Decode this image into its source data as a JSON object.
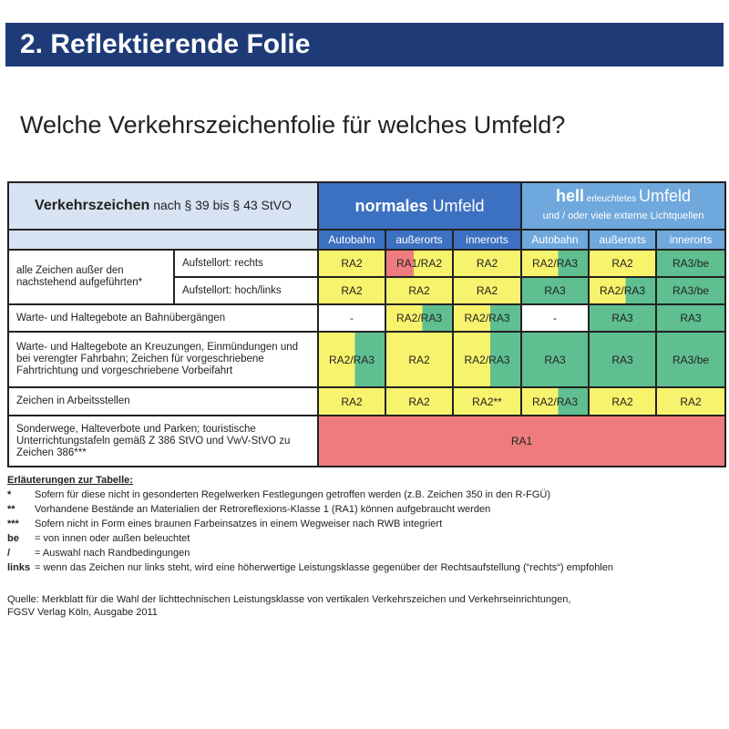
{
  "title": "2. Reflektierende Folie",
  "subtitle": "Welche Verkehrszeichenfolie für welches Umfeld?",
  "colors": {
    "title_bar": "#1e3b78",
    "normal_header": "#3c70c0",
    "hell_header": "#6fa8dc",
    "RA1": "#ee7c7e",
    "RA2": "#f8f36c",
    "RA3": "#5fbf91"
  },
  "table": {
    "header_left_bold": "Verkehrszeichen",
    "header_left_rest": " nach § 39 bis § 43 StVO",
    "normal_bold": "normales",
    "normal_rest": " Umfeld",
    "hell_bold": "hell",
    "hell_small": " erleuchtetes ",
    "hell_rest": "Umfeld",
    "hell_sub": "und / oder viele externe Lichtquellen",
    "subheaders": [
      "Autobahn",
      "außerorts",
      "innerorts",
      "Autobahn",
      "außerorts",
      "innerorts"
    ],
    "rows": [
      {
        "label": "alle Zeichen außer den nachstehend aufgeführten*",
        "sub": "Aufstellort: rechts",
        "cells": [
          {
            "t": "RA2",
            "c": "y"
          },
          {
            "t": "RA1/RA2",
            "c": "r-y"
          },
          {
            "t": "RA2",
            "c": "y"
          },
          {
            "t": "RA2/RA3",
            "c": "y-g"
          },
          {
            "t": "RA2",
            "c": "y"
          },
          {
            "t": "RA3/be",
            "c": "g"
          }
        ]
      },
      {
        "label": "",
        "sub": "Aufstellort: hoch/links",
        "cells": [
          {
            "t": "RA2",
            "c": "y"
          },
          {
            "t": "RA2",
            "c": "y"
          },
          {
            "t": "RA2",
            "c": "y"
          },
          {
            "t": "RA3",
            "c": "g"
          },
          {
            "t": "RA2/RA3",
            "c": "y-g"
          },
          {
            "t": "RA3/be",
            "c": "g"
          }
        ]
      },
      {
        "label": "Warte- und Haltegebote an Bahnübergängen",
        "cells": [
          {
            "t": "-",
            "c": "w"
          },
          {
            "t": "RA2/RA3",
            "c": "y-g"
          },
          {
            "t": "RA2/RA3",
            "c": "y-g"
          },
          {
            "t": "-",
            "c": "w"
          },
          {
            "t": "RA3",
            "c": "g"
          },
          {
            "t": "RA3",
            "c": "g"
          }
        ]
      },
      {
        "label": "Warte- und Haltegebote an Kreuzungen, Einmündungen und bei verengter Fahrbahn; Zeichen für vorgeschriebene Fahrtrichtung und vorgeschriebene Vorbeifahrt",
        "cells": [
          {
            "t": "RA2/RA3",
            "c": "y-g"
          },
          {
            "t": "RA2",
            "c": "y"
          },
          {
            "t": "RA2/RA3",
            "c": "y-g"
          },
          {
            "t": "RA3",
            "c": "g"
          },
          {
            "t": "RA3",
            "c": "g"
          },
          {
            "t": "RA3/be",
            "c": "g"
          }
        ]
      },
      {
        "label": "Zeichen in Arbeitsstellen",
        "cells": [
          {
            "t": "RA2",
            "c": "y"
          },
          {
            "t": "RA2",
            "c": "y"
          },
          {
            "t": "RA2**",
            "c": "y"
          },
          {
            "t": "RA2/RA3",
            "c": "y-g"
          },
          {
            "t": "RA2",
            "c": "y"
          },
          {
            "t": "RA2",
            "c": "y"
          }
        ]
      },
      {
        "label": "Sonderwege, Halteverbote und Parken; touristische Unterrichtungstafeln gemäß Z 386 StVO und VwV-StVO zu Zeichen 386***",
        "span": {
          "t": "RA1",
          "c": "r"
        }
      }
    ]
  },
  "notes": {
    "heading": "Erläuterungen zur Tabelle:",
    "items": [
      {
        "k": "*",
        "v": "Sofern für diese nicht in gesonderten Regelwerken Festlegungen getroffen werden (z.B. Zeichen 350 in den R-FGÜ)"
      },
      {
        "k": "**",
        "v": "Vorhandene Bestände an Materialien der Retroreflexions-Klasse 1 (RA1) können aufgebraucht werden"
      },
      {
        "k": "***",
        "v": "Sofern nicht in Form eines braunen Farbeinsatzes in einem Wegweiser nach RWB integriert"
      },
      {
        "k": "be",
        "v": "= von innen oder außen beleuchtet"
      },
      {
        "k": "/",
        "v": "= Auswahl nach Randbedingungen"
      },
      {
        "k": "links",
        "v": "= wenn das Zeichen nur links steht, wird eine höherwertige Leistungsklasse gegenüber der Rechtsaufstellung (“rechts“) empfohlen"
      }
    ]
  },
  "source": [
    "Quelle: Merkblatt für die Wahl der lichttechnischen Leistungsklasse von vertikalen Verkehrszeichen und Verkehrseinrichtungen,",
    "FGSV Verlag Köln, Ausgabe 2011"
  ]
}
